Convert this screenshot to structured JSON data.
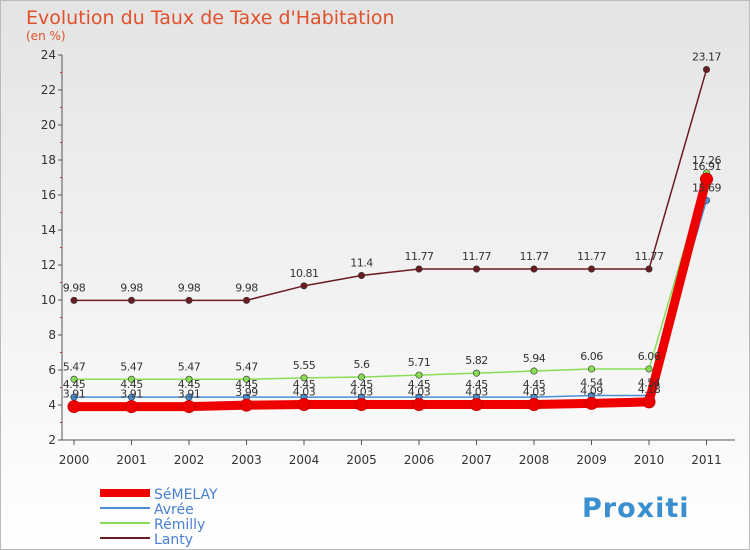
{
  "chart_data": {
    "type": "line",
    "title": "Evolution du Taux de Taxe d'Habitation",
    "subtitle": "(en %)",
    "xlabel": "",
    "ylabel": "",
    "categories": [
      "2000",
      "2001",
      "2002",
      "2003",
      "2004",
      "2005",
      "2006",
      "2007",
      "2008",
      "2009",
      "2010",
      "2011"
    ],
    "ylim": [
      2,
      24
    ],
    "yticks": [
      "2",
      "4",
      "6",
      "8",
      "10",
      "12",
      "14",
      "16",
      "18",
      "20",
      "22",
      "24"
    ],
    "grid": false,
    "legend_position": "bottom-left",
    "series": [
      {
        "name": "Lanty",
        "color": "#6b1c22",
        "values": [
          9.98,
          9.98,
          9.98,
          9.98,
          10.81,
          11.4,
          11.77,
          11.77,
          11.77,
          11.77,
          11.77,
          23.17
        ],
        "labels": [
          "9.98",
          "9.98",
          "9.98",
          "9.98",
          "10.81",
          "11.4",
          "11.77",
          "11.77",
          "11.77",
          "11.77",
          "11.77",
          "23.17"
        ]
      },
      {
        "name": "Rémilly",
        "color": "#88dd55",
        "values": [
          5.47,
          5.47,
          5.47,
          5.47,
          5.55,
          5.6,
          5.71,
          5.82,
          5.94,
          6.06,
          6.06,
          17.26
        ],
        "labels": [
          "5.47",
          "5.47",
          "5.47",
          "5.47",
          "5.55",
          "5.6",
          "5.71",
          "5.82",
          "5.94",
          "6.06",
          "6.06",
          "17.26"
        ]
      },
      {
        "name": "Avrée",
        "color": "#4a8fd6",
        "values": [
          4.45,
          4.45,
          4.45,
          4.45,
          4.45,
          4.45,
          4.45,
          4.45,
          4.45,
          4.54,
          4.54,
          15.69
        ],
        "labels": [
          "4.45",
          "4.45",
          "4.45",
          "4.45",
          "4.45",
          "4.45",
          "4.45",
          "4.45",
          "4.45",
          "4.54",
          "4.54",
          "15.69"
        ]
      },
      {
        "name": "SéMELAY",
        "color": "#ee0000",
        "values": [
          3.91,
          3.91,
          3.91,
          3.99,
          4.03,
          4.03,
          4.03,
          4.03,
          4.03,
          4.09,
          4.18,
          16.91
        ],
        "labels": [
          "3.91",
          "3.91",
          "3.91",
          "3.99",
          "4.03",
          "4.03",
          "4.03",
          "4.03",
          "4.03",
          "4.09",
          "4.18",
          "16.91"
        ]
      }
    ],
    "legend": [
      "SéMELAY",
      "Avrée",
      "Rémilly",
      "Lanty"
    ]
  },
  "logo": {
    "text": "Proxiti"
  }
}
